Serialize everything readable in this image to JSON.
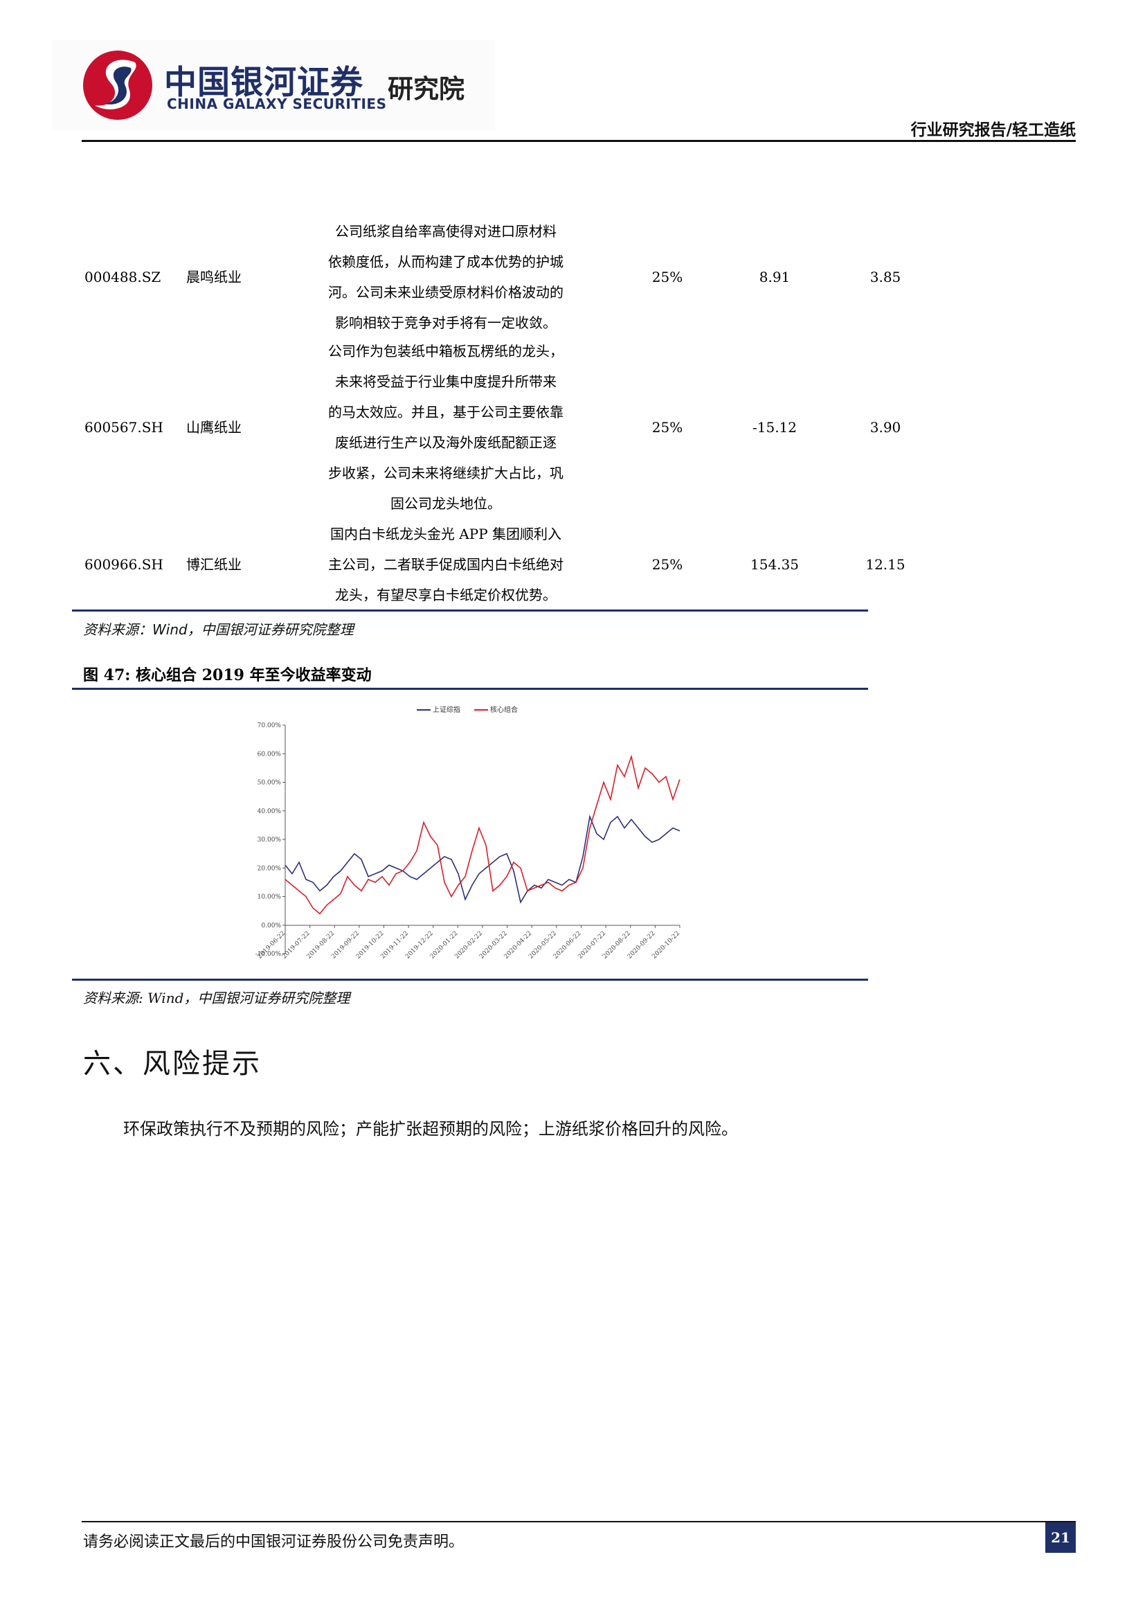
{
  "header": {
    "logo_cn": "中国银河证券",
    "logo_en": "CHINA GALAXY SECURITIES",
    "logo_institute": "研究院",
    "category": "行业研究报告/轻工造纸",
    "brand_color": "#1f2f68",
    "logo_accent_color": "#c8102e"
  },
  "table": {
    "rows": [
      {
        "code": "000488.SZ",
        "name": "晨鸣纸业",
        "reason_lines": [
          "公司纸浆自给率高使得对进口原材料",
          "依赖度低，从而构建了成本优势的护城",
          "河。公司未来业绩受原材料价格波动的",
          "影响相较于竞争对手将有一定收敛。"
        ],
        "weight": "25%",
        "val1": "8.91",
        "val2": "3.85"
      },
      {
        "code": "600567.SH",
        "name": "山鹰纸业",
        "reason_lines": [
          "公司作为包装纸中箱板瓦楞纸的龙头，",
          "未来将受益于行业集中度提升所带来",
          "的马太效应。并且，基于公司主要依靠",
          "废纸进行生产以及海外废纸配额正逐",
          "步收紧，公司未来将继续扩大占比，巩",
          "固公司龙头地位。"
        ],
        "weight": "25%",
        "val1": "-15.12",
        "val2": "3.90"
      },
      {
        "code": "600966.SH",
        "name": "博汇纸业",
        "reason_lines": [
          "国内白卡纸龙头金光 APP 集团顺利入",
          "主公司，二者联手促成国内白卡纸绝对",
          "龙头，有望尽享白卡纸定价权优势。"
        ],
        "weight": "25%",
        "val1": "154.35",
        "val2": "12.15"
      }
    ],
    "source": "资料来源：Wind，中国银河证券研究院整理"
  },
  "figure": {
    "title": "图 47:  核心组合 2019 年至今收益率变动",
    "source": "资料来源: Wind，中国银河证券研究院整理"
  },
  "chart_data": {
    "type": "line",
    "title": "",
    "xlabel": "",
    "ylabel": "",
    "ylim": [
      -10,
      70
    ],
    "yticks": [
      "-10.00%",
      "0.00%",
      "10.00%",
      "20.00%",
      "30.00%",
      "40.00%",
      "50.00%",
      "60.00%",
      "70.00%"
    ],
    "ytick_values": [
      -10,
      0,
      10,
      20,
      30,
      40,
      50,
      60,
      70
    ],
    "x_labels": [
      "2019-06-22",
      "2019-07-22",
      "2019-08-22",
      "2019-09-22",
      "2019-10-22",
      "2019-11-22",
      "2019-12-22",
      "2020-01-22",
      "2020-02-22",
      "2020-03-22",
      "2020-04-22",
      "2020-05-22",
      "2020-06-22",
      "2020-07-22",
      "2020-08-22",
      "2020-09-22",
      "2020-10-22"
    ],
    "grid": false,
    "legend_position": "top",
    "series": [
      {
        "name": "上证综指",
        "color": "#2b2f7e",
        "values": [
          21,
          18,
          22,
          16,
          15,
          12,
          14,
          17,
          19,
          22,
          25,
          23,
          17,
          18,
          19,
          21,
          20,
          19,
          17,
          16,
          18,
          20,
          22,
          24,
          23,
          18,
          9,
          14,
          18,
          20,
          22,
          24,
          25,
          19,
          8,
          12,
          14,
          13,
          16,
          15,
          14,
          16,
          15,
          24,
          38,
          32,
          30,
          36,
          38,
          34,
          37,
          34,
          31,
          29,
          30,
          32,
          34,
          33
        ]
      },
      {
        "name": "核心组合",
        "color": "#d71f26",
        "values": [
          16,
          14,
          12,
          10,
          6,
          4,
          7,
          9,
          11,
          17,
          14,
          12,
          16,
          15,
          17,
          14,
          18,
          19,
          22,
          26,
          36,
          31,
          28,
          15,
          10,
          14,
          17,
          26,
          34,
          28,
          12,
          14,
          17,
          22,
          20,
          12,
          13,
          14,
          15,
          13,
          12,
          14,
          15,
          20,
          34,
          42,
          50,
          44,
          56,
          52,
          59,
          48,
          55,
          53,
          50,
          52,
          44,
          51
        ]
      }
    ]
  },
  "section": {
    "heading": "六、风险提示",
    "body": "环保政策执行不及预期的风险；产能扩张超预期的风险；上游纸浆价格回升的风险。"
  },
  "footer": {
    "disclaimer": "请务必阅读正文最后的中国银河证券股份公司免责声明。",
    "page": "21"
  }
}
